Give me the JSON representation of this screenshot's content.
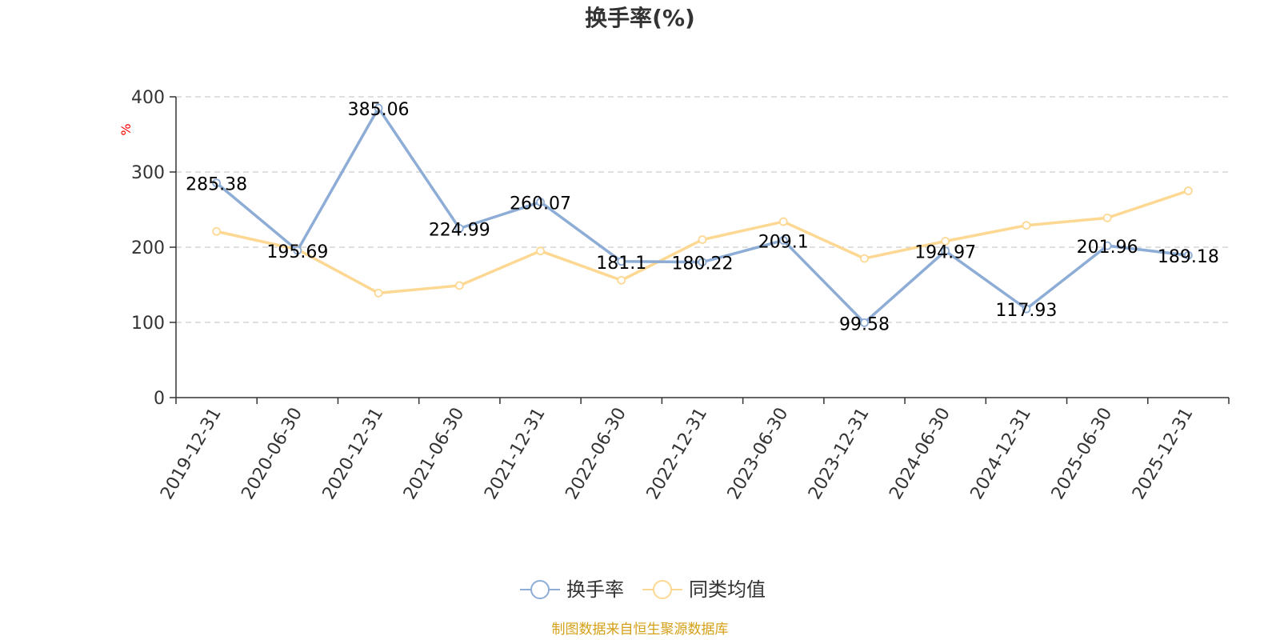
{
  "chart_data": {
    "type": "line",
    "title": "换手率(%)",
    "ylabel": "%",
    "xlabel": "",
    "categories": [
      "2019-12-31",
      "2020-06-30",
      "2020-12-31",
      "2021-06-30",
      "2021-12-31",
      "2022-06-30",
      "2022-12-31",
      "2023-06-30",
      "2023-12-31",
      "2024-06-30",
      "2024-12-31",
      "2025-06-30",
      "2025-12-31"
    ],
    "ylim": [
      0,
      400
    ],
    "yticks": [
      0,
      100,
      200,
      300,
      400
    ],
    "grid": true,
    "legend_position": "bottom-center",
    "series": [
      {
        "name": "换手率",
        "color": "#8eadd6",
        "values": [
          285.38,
          195.69,
          385.06,
          224.99,
          260.07,
          181.1,
          180.22,
          209.1,
          99.58,
          194.97,
          117.93,
          201.96,
          189.18
        ],
        "labels": [
          "285.38",
          "195.69",
          "385.06",
          "224.99",
          "260.07",
          "181.1",
          "180.22",
          "209.1",
          "99.58",
          "194.97",
          "117.93",
          "201.96",
          "189.18"
        ]
      },
      {
        "name": "同类均值",
        "color": "#fcd893",
        "values": [
          221,
          197,
          139,
          149,
          195,
          156,
          210,
          234,
          185,
          208,
          229,
          239,
          275
        ]
      }
    ]
  },
  "source_text": "制图数据来自恒生聚源数据库",
  "colors": {
    "unit_label": "#ff0000",
    "source_text": "#d4a017",
    "grid": "#cccccc",
    "axis": "#333333"
  }
}
